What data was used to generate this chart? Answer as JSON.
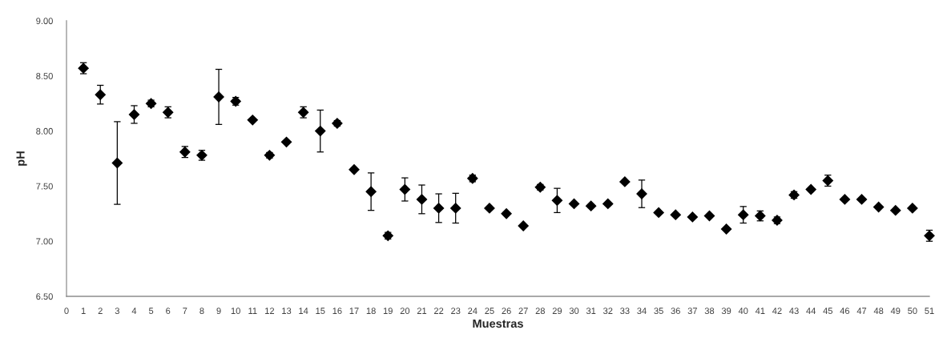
{
  "chart_data": {
    "type": "scatter",
    "xlabel": "Muestras",
    "ylabel": "pH",
    "x": [
      1,
      2,
      3,
      4,
      5,
      6,
      7,
      8,
      9,
      10,
      11,
      12,
      13,
      14,
      15,
      16,
      17,
      18,
      19,
      20,
      21,
      22,
      23,
      24,
      25,
      26,
      27,
      28,
      29,
      30,
      31,
      32,
      33,
      34,
      35,
      36,
      37,
      38,
      39,
      40,
      41,
      42,
      43,
      44,
      45,
      46,
      47,
      48,
      49,
      50,
      51
    ],
    "series": [
      {
        "color": "#000000",
        "values": [
          8.57,
          8.33,
          7.71,
          8.15,
          8.25,
          8.17,
          7.81,
          7.78,
          8.31,
          8.27,
          8.1,
          7.78,
          7.9,
          8.17,
          8.0,
          8.07,
          7.65,
          7.45,
          7.05,
          7.47,
          7.38,
          7.3,
          7.3,
          7.57,
          7.3,
          7.25,
          7.14,
          7.49,
          7.37,
          7.34,
          7.32,
          7.34,
          7.54,
          7.43,
          7.26,
          7.24,
          7.22,
          7.23,
          7.11,
          7.24,
          7.23,
          7.19,
          7.42,
          7.47,
          7.55,
          7.38,
          7.38,
          7.31,
          7.28,
          7.3,
          7.05
        ],
        "errors": [
          0.05,
          0.085,
          0.375,
          0.08,
          0.03,
          0.05,
          0.05,
          0.045,
          0.25,
          0.035,
          null,
          0.025,
          null,
          0.05,
          0.19,
          0.025,
          null,
          0.17,
          0.03,
          0.105,
          0.13,
          0.13,
          0.135,
          0.03,
          null,
          null,
          null,
          0.025,
          0.11,
          null,
          null,
          null,
          null,
          0.125,
          null,
          null,
          null,
          null,
          null,
          0.075,
          0.045,
          0.03,
          0.03,
          null,
          0.05,
          null,
          null,
          null,
          null,
          null,
          0.05
        ]
      }
    ],
    "xlim": [
      0,
      51
    ],
    "xticks": [
      0,
      1,
      2,
      3,
      4,
      5,
      6,
      7,
      8,
      9,
      10,
      11,
      12,
      13,
      14,
      15,
      16,
      17,
      18,
      19,
      20,
      21,
      22,
      23,
      24,
      25,
      26,
      27,
      28,
      29,
      30,
      31,
      32,
      33,
      34,
      35,
      36,
      37,
      38,
      39,
      40,
      41,
      42,
      43,
      44,
      45,
      46,
      47,
      48,
      49,
      50,
      51
    ],
    "ylim": [
      6.5,
      9.0
    ],
    "yticks": [
      {
        "value": 6.5,
        "label": "6.50"
      },
      {
        "value": 7.0,
        "label": "7.00"
      },
      {
        "value": 7.5,
        "label": "7.50"
      },
      {
        "value": 8.0,
        "label": "8.00"
      },
      {
        "value": 8.5,
        "label": "8.50"
      },
      {
        "value": 9.0,
        "label": "9.00"
      }
    ],
    "marker": "diamond",
    "grid": false
  }
}
